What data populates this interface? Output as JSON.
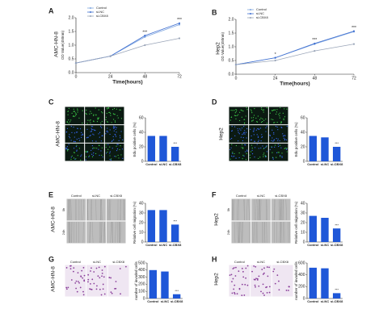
{
  "panels": [
    {
      "letter": "A",
      "row_label": "AMC-HN-8"
    },
    {
      "letter": "B",
      "row_label": "Hep2"
    },
    {
      "letter": "C",
      "row_label": "AMC-HN-8"
    },
    {
      "letter": "D",
      "row_label": "Hep2"
    },
    {
      "letter": "E",
      "row_label": "AMC-HN-8",
      "image_columns": [
        "Control",
        "si-NC",
        "si-CBX8"
      ],
      "image_rows": [
        "0h",
        "24h"
      ]
    },
    {
      "letter": "F",
      "row_label": "Hep2",
      "image_columns": [
        "Control",
        "si-NC",
        "si-CBX8"
      ],
      "image_rows": [
        "0h",
        "24h"
      ]
    },
    {
      "letter": "G",
      "row_label": "AMC-HN-8",
      "image_columns": [
        "Control",
        "si-NC",
        "si-CBX8"
      ]
    },
    {
      "letter": "H",
      "row_label": "Hep2",
      "image_columns": [
        "Control",
        "si-NC",
        "si-CBX8"
      ]
    }
  ],
  "chart_data": [
    {
      "type": "line",
      "x_label": "Time(hours)",
      "y_label": "OD Value(450nm)",
      "x": [
        0,
        24,
        48,
        72
      ],
      "xlim": [
        0,
        72
      ],
      "xticks": [
        0,
        24,
        48,
        72
      ],
      "ylim": [
        0,
        2
      ],
      "yticks": [
        {
          "value": 0,
          "label": "0.0"
        },
        0.5,
        {
          "value": 1,
          "label": "1.0"
        },
        1.5,
        {
          "value": 2,
          "label": "2.0"
        }
      ],
      "series": [
        {
          "name": "Control",
          "color": "#7fa6e0",
          "values": [
            0.35,
            0.6,
            1.3,
            1.75
          ]
        },
        {
          "name": "si-NC",
          "color": "#3f6fd1",
          "values": [
            0.35,
            0.6,
            1.35,
            1.8
          ]
        },
        {
          "name": "si-CBX8",
          "color": "#9aa5b8",
          "values": [
            0.35,
            0.6,
            1.0,
            1.25
          ]
        }
      ],
      "annotations": [
        {
          "x": 48,
          "text": "***"
        },
        {
          "x": 72,
          "text": "***"
        }
      ]
    },
    {
      "type": "line",
      "x_label": "Time(hours)",
      "y_label": "OD Value(450nm)",
      "x": [
        0,
        24,
        48,
        72
      ],
      "xlim": [
        0,
        72
      ],
      "xticks": [
        0,
        24,
        48,
        72
      ],
      "ylim": [
        0,
        2
      ],
      "yticks": [
        {
          "value": 0,
          "label": "0.0"
        },
        0.5,
        {
          "value": 1,
          "label": "1.0"
        },
        1.5,
        {
          "value": 2,
          "label": "2.0"
        }
      ],
      "series": [
        {
          "name": "Control",
          "color": "#7fa6e0",
          "values": [
            0.35,
            0.6,
            1.1,
            1.55
          ]
        },
        {
          "name": "si-NC",
          "color": "#3f6fd1",
          "values": [
            0.35,
            0.6,
            1.12,
            1.57
          ]
        },
        {
          "name": "si-CBX8",
          "color": "#9aa5b8",
          "values": [
            0.35,
            0.5,
            0.85,
            1.1
          ]
        }
      ],
      "annotations": [
        {
          "x": 24,
          "text": "*"
        },
        {
          "x": 48,
          "text": "***"
        },
        {
          "x": 72,
          "text": "***"
        }
      ]
    },
    {
      "type": "bar",
      "y_label": "Edu positive cells (%)",
      "categories": [
        "Control",
        "si-NC",
        "si-CBX8"
      ],
      "values": [
        35,
        35,
        20
      ],
      "color": "#1f57d8",
      "ylim": [
        0,
        60
      ],
      "yticks": [
        0,
        20,
        40,
        60
      ],
      "annotations": [
        {
          "category": "si-CBX8",
          "text": "***"
        }
      ]
    },
    {
      "type": "bar",
      "y_label": "Edu positive cells (%)",
      "categories": [
        "Control",
        "si-NC",
        "si-CBX8"
      ],
      "values": [
        35,
        33,
        20
      ],
      "color": "#1f57d8",
      "ylim": [
        0,
        60
      ],
      "yticks": [
        0,
        20,
        40,
        60
      ],
      "annotations": [
        {
          "category": "si-CBX8",
          "text": "***"
        }
      ]
    },
    {
      "type": "bar",
      "y_label": "Relative cell migration (%)",
      "categories": [
        "Control",
        "si-NC",
        "si-CBX8"
      ],
      "values": [
        33,
        33,
        18
      ],
      "color": "#1f57d8",
      "ylim": [
        0,
        40
      ],
      "yticks": [
        0,
        10,
        20,
        30,
        40
      ],
      "annotations": [
        {
          "category": "si-CBX8",
          "text": "***"
        }
      ]
    },
    {
      "type": "bar",
      "y_label": "Relative cell migration (%)",
      "categories": [
        "Control",
        "si-NC",
        "si-CBX8"
      ],
      "values": [
        27,
        25,
        14
      ],
      "color": "#1f57d8",
      "ylim": [
        0,
        40
      ],
      "yticks": [
        0,
        10,
        20,
        30,
        40
      ],
      "annotations": [
        {
          "category": "si-CBX8",
          "text": "***"
        }
      ]
    },
    {
      "type": "bar",
      "y_label": "number of invaded cells",
      "categories": [
        "Control",
        "si-NC",
        "si-CBX8"
      ],
      "values": [
        400,
        380,
        60
      ],
      "color": "#1f57d8",
      "ylim": [
        0,
        500
      ],
      "yticks": [
        0,
        100,
        200,
        300,
        400,
        500
      ],
      "annotations": [
        {
          "category": "si-CBX8",
          "text": "***"
        }
      ]
    },
    {
      "type": "bar",
      "y_label": "number of invaded cells",
      "categories": [
        "Control",
        "si-NC",
        "si-CBX8"
      ],
      "values": [
        520,
        510,
        90
      ],
      "color": "#1f57d8",
      "ylim": [
        0,
        600
      ],
      "yticks": [
        0,
        200,
        400,
        600
      ],
      "annotations": [
        {
          "category": "si-CBX8",
          "text": "***"
        }
      ]
    }
  ]
}
